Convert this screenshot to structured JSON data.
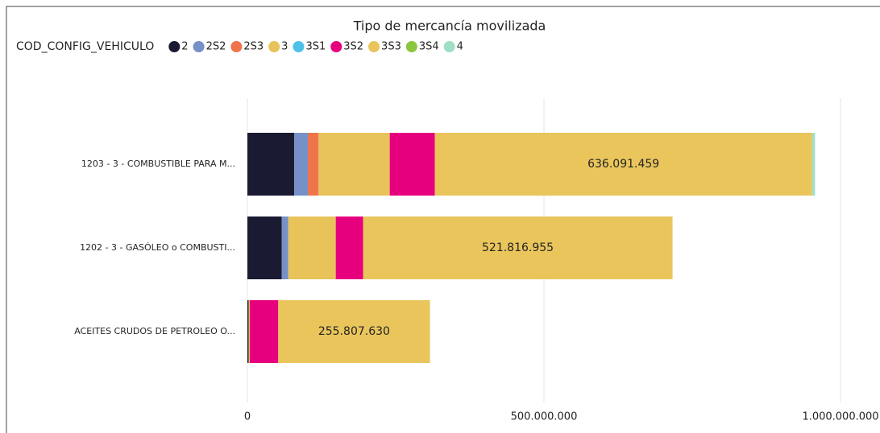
{
  "chart_data": {
    "type": "stacked-barh",
    "title": "Tipo de mercancía movilizada",
    "legend_title": "COD_CONFIG_VEHICULO",
    "categories": [
      "1203 - 3 - COMBUSTIBLE PARA M...",
      "1202 - 3 - GASÓLEO o COMBUSTI...",
      "ACEITES CRUDOS DE PETROLEO O..."
    ],
    "series": [
      {
        "name": "2",
        "color": "#1b1a33",
        "values": [
          79000000,
          58000000,
          2000000
        ]
      },
      {
        "name": "2S2",
        "color": "#7591c7",
        "values": [
          23000000,
          11000000,
          0
        ]
      },
      {
        "name": "2S3",
        "color": "#f0744a",
        "values": [
          18000000,
          0,
          0
        ]
      },
      {
        "name": "3",
        "color": "#e8c35a",
        "values": [
          120000000,
          80000000,
          2000000
        ]
      },
      {
        "name": "3S1",
        "color": "#4fc1e8",
        "values": [
          0,
          0,
          0
        ]
      },
      {
        "name": "3S2",
        "color": "#e6007e",
        "values": [
          76000000,
          46000000,
          48000000
        ]
      },
      {
        "name": "3S3",
        "color": "#e9c55c",
        "values": [
          636091459,
          521816955,
          255807630
        ],
        "value_labels": [
          "636.091.459",
          "521.816.955",
          "255.807.630"
        ]
      },
      {
        "name": "3S4",
        "color": "#8cc63f",
        "values": [
          0,
          0,
          0
        ]
      },
      {
        "name": "4",
        "color": "#a0dfc4",
        "values": [
          5000000,
          0,
          0
        ]
      }
    ],
    "xlim": [
      0,
      1000000000
    ],
    "xticks": [
      0,
      {
        "value": 500000000,
        "label": "500.000.000"
      },
      {
        "value": 1000000000,
        "label": "1.000.000.000"
      }
    ],
    "grid": true
  }
}
